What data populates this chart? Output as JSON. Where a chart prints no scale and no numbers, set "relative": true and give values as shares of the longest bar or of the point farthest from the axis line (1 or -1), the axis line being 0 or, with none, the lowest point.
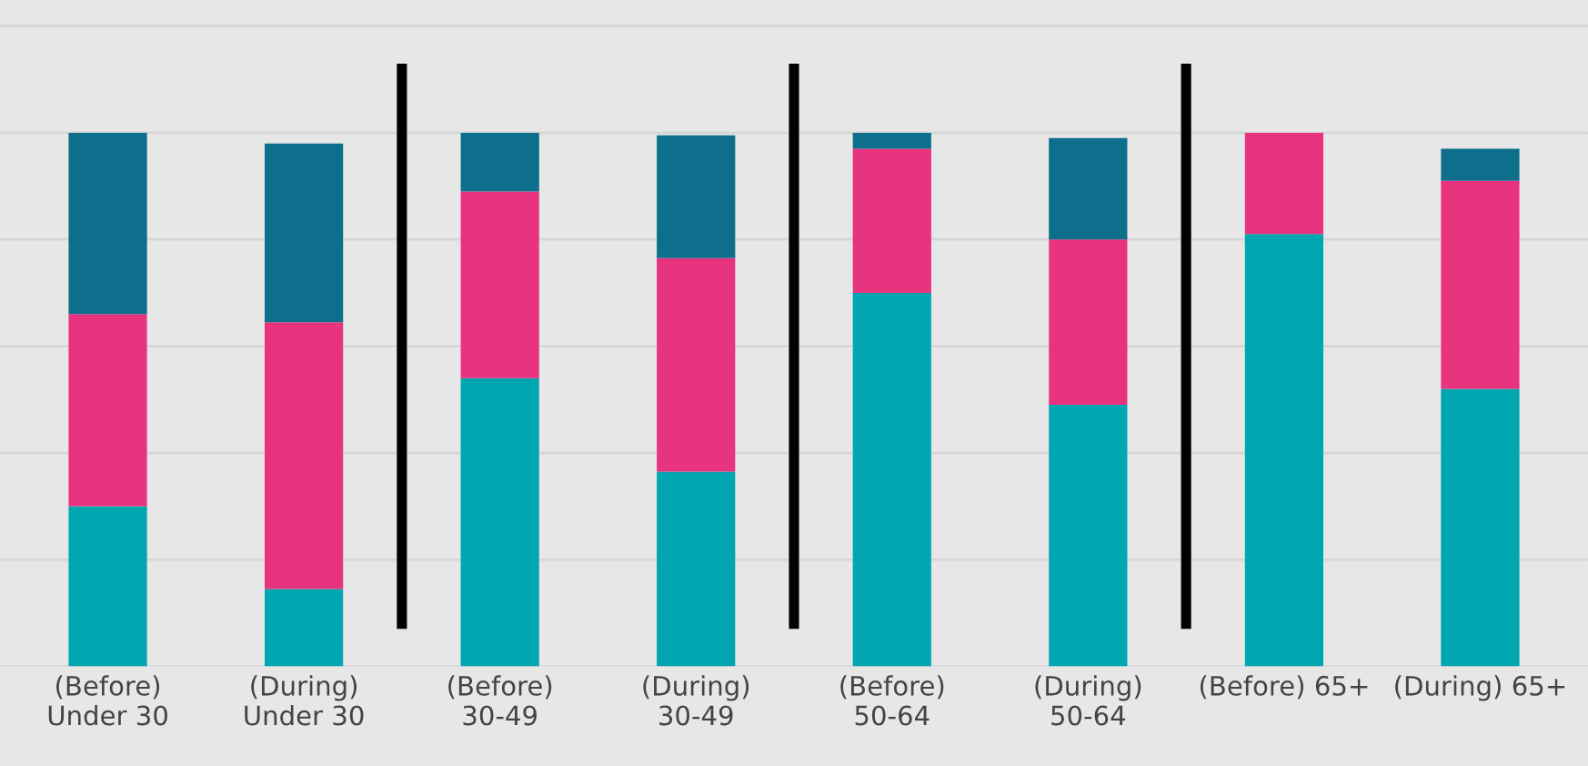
{
  "chart_data": {
    "type": "bar",
    "stacked": true,
    "relative": true,
    "grid": "y",
    "categories": [
      "(Before) Under 30",
      "(During) Under 30",
      "(Before) 30-49",
      "(During) 30-49",
      "(Before) 50-64",
      "(During) 50-64",
      "(Before) 65+",
      "(During) 65+"
    ],
    "series": [
      {
        "color": "#00a7b0",
        "values": [
          0.3,
          0.145,
          0.54,
          0.365,
          0.7,
          0.49,
          0.81,
          0.52
        ]
      },
      {
        "color": "#e8337f",
        "values": [
          0.36,
          0.5,
          0.35,
          0.4,
          0.27,
          0.31,
          0.19,
          0.39
        ]
      },
      {
        "color": "#0e6f8c",
        "values": [
          0.34,
          0.335,
          0.11,
          0.23,
          0.03,
          0.19,
          0.0,
          0.06
        ]
      }
    ]
  }
}
